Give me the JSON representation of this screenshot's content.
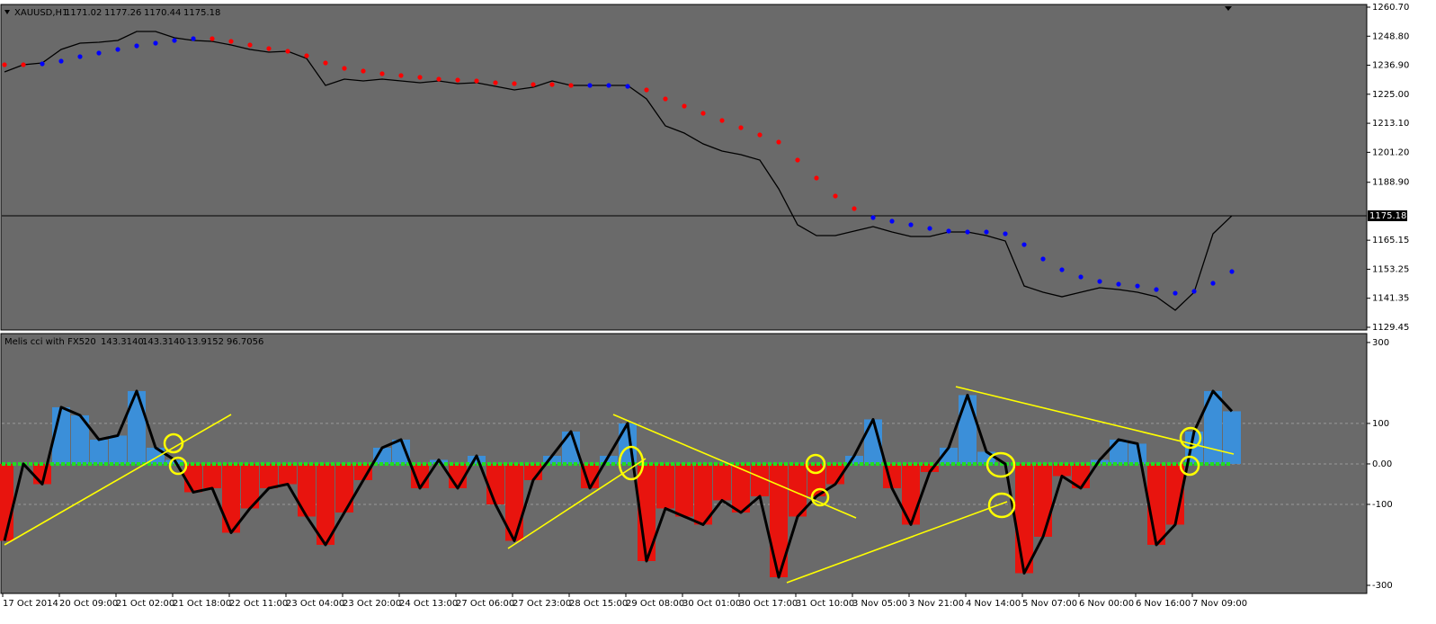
{
  "chart_data": [
    {
      "type": "line",
      "symbol": "XAUUSD,H1",
      "ohlc": [
        1171.02,
        1177.26,
        1170.44,
        1175.18
      ],
      "ylim": [
        1128.34,
        1261.8
      ],
      "yticks": [
        {
          "value": 1260.7,
          "label": "1260.70"
        },
        {
          "value": 1248.8,
          "label": "1248.80"
        },
        {
          "value": 1236.9,
          "label": "1236.90"
        },
        {
          "value": 1225,
          "label": "1225.00"
        },
        {
          "value": 1213.1,
          "label": "1213.10"
        },
        {
          "value": 1201.2,
          "label": "1201.20"
        },
        {
          "value": 1188.9,
          "label": "1188.90"
        },
        {
          "value": 1165.15,
          "label": "1165.15"
        },
        {
          "value": 1153.25,
          "label": "1153.25"
        },
        {
          "value": 1141.35,
          "label": "1141.35"
        },
        {
          "value": 1129.45,
          "label": "1129.45"
        }
      ],
      "series": [
        {
          "color": "#000000",
          "values": [
            1234.15,
            1237.1,
            1237.84,
            1243.37,
            1245.95,
            1246.32,
            1247.06,
            1250.74,
            1250.74,
            1248.16,
            1247.06,
            1246.69,
            1245.21,
            1243.37,
            1242.26,
            1242.63,
            1239.68,
            1228.62,
            1231.2,
            1230.46,
            1231.2,
            1230.46,
            1229.73,
            1230.46,
            1229.36,
            1229.73,
            1228.25,
            1226.78,
            1227.88,
            1230.46,
            1228.62,
            1228.62,
            1228.62,
            1228.62,
            1223.09,
            1212.03,
            1209.08,
            1204.65,
            1201.7,
            1200.23,
            1198.02,
            1186.22,
            1171.47,
            1167.04,
            1167.04,
            1168.89,
            1170.73,
            1168.52,
            1166.67,
            1166.67,
            1168.52,
            1168.52,
            1167.04,
            1164.83,
            1146.39,
            1143.81,
            1141.97,
            1143.81,
            1145.66,
            1144.92,
            1143.81,
            1141.97,
            1136.44,
            1143.81,
            1167.78,
            1175.18
          ]
        },
        {
          "values": [
            1237.1,
            1237.1,
            1237.47,
            1238.58,
            1240.42,
            1241.89,
            1243.37,
            1244.84,
            1245.95,
            1247.06,
            1247.79,
            1247.79,
            1246.69,
            1245.21,
            1243.74,
            1242.63,
            1240.79,
            1237.84,
            1235.63,
            1234.52,
            1233.41,
            1232.68,
            1231.94,
            1231.2,
            1230.83,
            1230.46,
            1229.73,
            1229.36,
            1228.99,
            1228.99,
            1228.62,
            1228.62,
            1228.62,
            1228.25,
            1226.78,
            1223.09,
            1220.14,
            1217.19,
            1214.24,
            1211.29,
            1208.34,
            1205.39,
            1198.02,
            1190.64,
            1183.27,
            1178.1,
            1174.42,
            1172.94,
            1171.47,
            1169.99,
            1168.89,
            1168.52,
            1168.52,
            1167.78,
            1163.35,
            1157.46,
            1153.03,
            1150.08,
            1148.24,
            1147.13,
            1146.39,
            1144.92,
            1143.44,
            1144.18,
            1147.5,
            1152.29
          ],
          "colors": [
            "#ff0000",
            "#ff0000",
            "#0000ff",
            "#0000ff",
            "#0000ff",
            "#0000ff",
            "#0000ff",
            "#0000ff",
            "#0000ff",
            "#0000ff",
            "#0000ff",
            "#ff0000",
            "#ff0000",
            "#ff0000",
            "#ff0000",
            "#ff0000",
            "#ff0000",
            "#ff0000",
            "#ff0000",
            "#ff0000",
            "#ff0000",
            "#ff0000",
            "#ff0000",
            "#ff0000",
            "#ff0000",
            "#ff0000",
            "#ff0000",
            "#ff0000",
            "#ff0000",
            "#ff0000",
            "#ff0000",
            "#0000ff",
            "#0000ff",
            "#0000ff",
            "#ff0000",
            "#ff0000",
            "#ff0000",
            "#ff0000",
            "#ff0000",
            "#ff0000",
            "#ff0000",
            "#ff0000",
            "#ff0000",
            "#ff0000",
            "#ff0000",
            "#ff0000",
            "#0000ff",
            "#0000ff",
            "#0000ff",
            "#0000ff",
            "#0000ff",
            "#0000ff",
            "#0000ff",
            "#0000ff",
            "#0000ff",
            "#0000ff",
            "#0000ff",
            "#0000ff",
            "#0000ff",
            "#0000ff",
            "#0000ff",
            "#0000ff",
            "#0000ff",
            "#0000ff",
            "#0000ff",
            "#0000ff"
          ]
        }
      ]
    },
    {
      "type": "bar",
      "title": "Melis cci with FX520",
      "indicator_values": [
        {
          "value": 143.314,
          "label": "143.3140"
        },
        {
          "value": 143.314,
          "label": "143.3140"
        },
        {
          "value": -13.9152,
          "label": "-13.9152"
        },
        {
          "value": 96.7056,
          "label": "96.7056"
        }
      ],
      "ylim": [
        -320,
        322
      ],
      "yticks": [
        300,
        100,
        {
          "value": 0,
          "label": "0.00"
        },
        -100,
        -300
      ],
      "levels": [
        100,
        0,
        -100
      ],
      "positive_color": "#3b8fd9",
      "negative_color": "#e8140e",
      "line_color": "#000000",
      "values": [
        -190,
        0,
        -50,
        140,
        120,
        60,
        70,
        180,
        40,
        10,
        -70,
        -60,
        -170,
        -110,
        -60,
        -50,
        -130,
        -200,
        -120,
        -40,
        40,
        60,
        -60,
        10,
        -60,
        20,
        -100,
        -190,
        -40,
        20,
        80,
        -60,
        20,
        100,
        -240,
        -110,
        -130,
        -150,
        -90,
        -120,
        -80,
        -280,
        -130,
        -80,
        -50,
        20,
        110,
        -60,
        -150,
        -20,
        40,
        170,
        30,
        0,
        -270,
        -180,
        -30,
        -60,
        10,
        60,
        50,
        -200,
        -150,
        80,
        180,
        130
      ],
      "x_labels": [
        "17 Oct 2014",
        "20 Oct 09:00",
        "21 Oct 02:00",
        "21 Oct 18:00",
        "22 Oct 11:00",
        "23 Oct 04:00",
        "23 Oct 20:00",
        "24 Oct 13:00",
        "27 Oct 06:00",
        "27 Oct 23:00",
        "28 Oct 15:00",
        "29 Oct 08:00",
        "30 Oct 01:00",
        "30 Oct 17:00",
        "31 Oct 10:00",
        "3 Nov 05:00",
        "3 Nov 21:00",
        "4 Nov 14:00",
        "5 Nov 07:00",
        "6 Nov 00:00",
        "6 Nov 16:00",
        "7 Nov 09:00"
      ]
    }
  ]
}
